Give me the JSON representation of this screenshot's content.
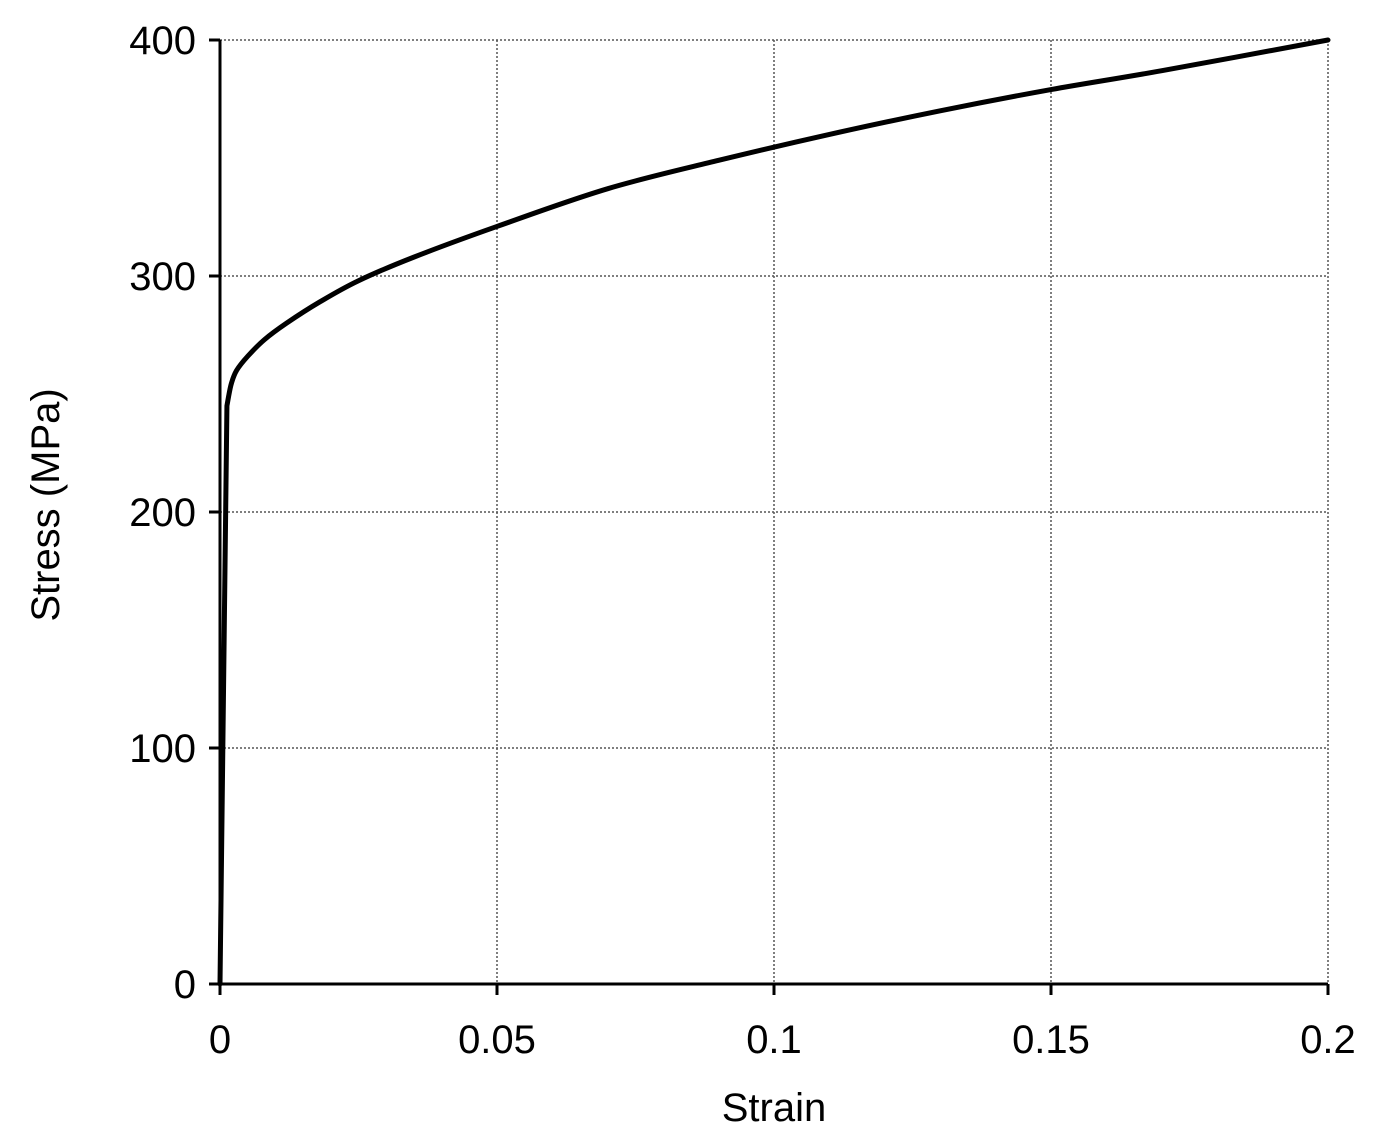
{
  "chart_data": {
    "type": "line",
    "title": "",
    "xlabel": "Strain",
    "ylabel": "Stress (MPa)",
    "xlim": [
      0,
      0.2
    ],
    "ylim": [
      0,
      400
    ],
    "x_ticks": [
      "0",
      "0.05",
      "0.1",
      "0.15",
      "0.2"
    ],
    "y_ticks": [
      "0",
      "100",
      "200",
      "300",
      "400"
    ],
    "grid": true,
    "legend": "none",
    "series": [
      {
        "color": "#000000",
        "x": [
          0,
          0.00125,
          0.002,
          0.003,
          0.005,
          0.008,
          0.012,
          0.018,
          0.025,
          0.035,
          0.05,
          0.07,
          0.09,
          0.11,
          0.13,
          0.15,
          0.17,
          0.2
        ],
        "y": [
          0,
          245,
          254,
          260,
          266,
          273,
          280,
          289,
          298,
          308,
          321,
          337,
          349,
          360,
          370,
          379,
          387,
          400
        ]
      }
    ]
  }
}
